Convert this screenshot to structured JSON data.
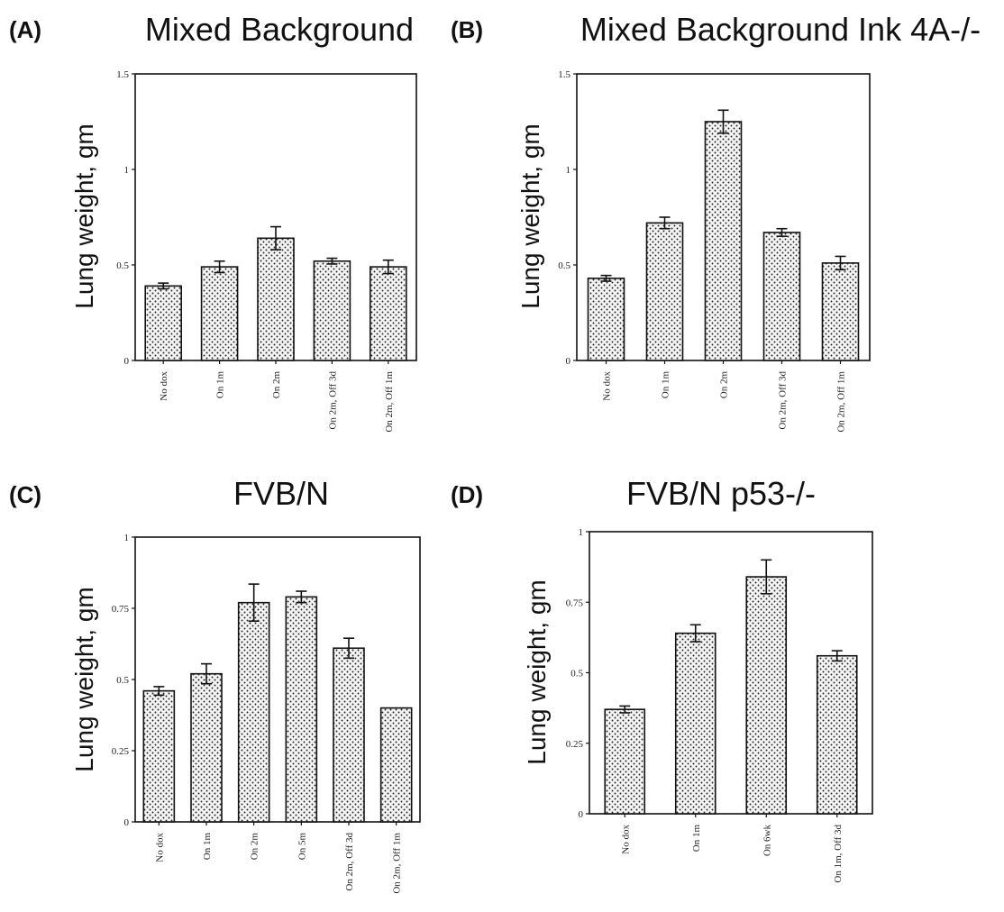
{
  "chart_data": [
    {
      "type": "bar",
      "panel": "(A)",
      "title": "Mixed Background",
      "ylabel": "Lung weight, gm",
      "ylim": [
        0,
        1.5
      ],
      "yticks": [
        "0",
        "0.5",
        "1",
        "1.5"
      ],
      "categories": [
        "No dox",
        "On 1m",
        "On 2m",
        "On 2m, Off 3d",
        "On 2m, Off 1m"
      ],
      "values": [
        0.39,
        0.49,
        0.64,
        0.52,
        0.49
      ],
      "errors": [
        0.015,
        0.03,
        0.06,
        0.015,
        0.035
      ],
      "grid": false
    },
    {
      "type": "bar",
      "panel": "(B)",
      "title": "Mixed Background Ink 4A-/-",
      "ylabel": "Lung weight, gm",
      "ylim": [
        0,
        1.5
      ],
      "yticks": [
        "0",
        "0.5",
        "1",
        "1.5"
      ],
      "categories": [
        "No dox",
        "On 1m",
        "On 2m",
        "On 2m, Off 3d",
        "On 2m, Off 1m"
      ],
      "values": [
        0.43,
        0.72,
        1.25,
        0.67,
        0.51
      ],
      "errors": [
        0.015,
        0.03,
        0.06,
        0.02,
        0.035
      ],
      "grid": false
    },
    {
      "type": "bar",
      "panel": "(C)",
      "title": "FVB/N",
      "ylabel": "Lung weight, gm",
      "ylim": [
        0,
        1
      ],
      "yticks": [
        "0",
        "0.25",
        "0.5",
        "0.75",
        "1"
      ],
      "categories": [
        "No dox",
        "On 1m",
        "On 2m",
        "On 5m",
        "On 2m, Off 3d",
        "On 2m, Off 1m"
      ],
      "values": [
        0.46,
        0.52,
        0.77,
        0.79,
        0.61,
        0.4
      ],
      "errors": [
        0.015,
        0.035,
        0.065,
        0.02,
        0.035,
        0
      ],
      "grid": false
    },
    {
      "type": "bar",
      "panel": "(D)",
      "title": "FVB/N p53-/-",
      "ylabel": "Lung weight, gm",
      "ylim": [
        0,
        1
      ],
      "yticks": [
        "0",
        "0.25",
        "0.5",
        "0.75",
        "1"
      ],
      "categories": [
        "No dox",
        "On 1m",
        "On 6wk",
        "On 1m, Off 3d"
      ],
      "values": [
        0.37,
        0.64,
        0.84,
        0.56
      ],
      "errors": [
        0.012,
        0.03,
        0.06,
        0.018
      ],
      "grid": false
    }
  ]
}
